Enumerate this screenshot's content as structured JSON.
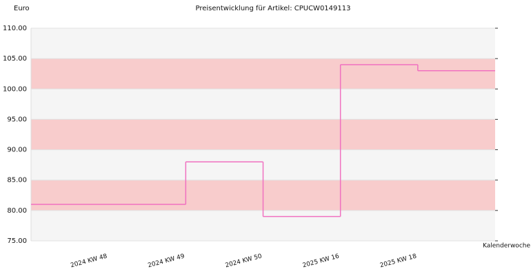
{
  "chart_data": {
    "type": "step",
    "title": "Preisentwicklung für Artikel: CPUCW0149113",
    "y_label": "Euro",
    "x_label": "Kalenderwoche",
    "categories": [
      "2024 KW 48",
      "2024 KW 49",
      "2024 KW 50",
      "2025 KW 16",
      "2025 KW 18"
    ],
    "values": [
      81,
      88,
      79,
      104,
      103
    ],
    "color": "#f070c0",
    "band_colors": [
      "#f5f5f5",
      "#f8cccc"
    ],
    "ylim": [
      75,
      110
    ],
    "yticks": [
      {
        "value": 75,
        "label": "75.00"
      },
      {
        "value": 80,
        "label": "80.00"
      },
      {
        "value": 85,
        "label": "85.00"
      },
      {
        "value": 90,
        "label": "90.00"
      },
      {
        "value": 95,
        "label": "95.00"
      },
      {
        "value": 100,
        "label": "100.00"
      },
      {
        "value": 105,
        "label": "105.00"
      },
      {
        "value": 110,
        "label": "110.00"
      }
    ]
  }
}
